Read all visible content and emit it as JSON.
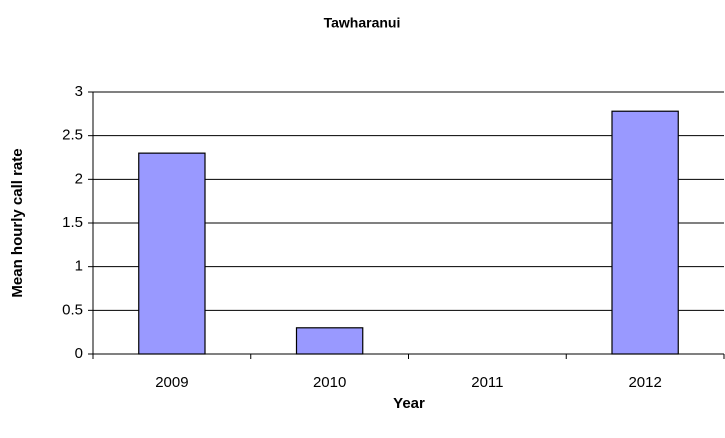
{
  "chart_data": {
    "type": "bar",
    "title": "Tawharanui",
    "x_label": "Year",
    "y_label": "Mean hourly call rate",
    "categories": [
      "2009",
      "2010",
      "2011",
      "2012"
    ],
    "values": [
      2.3,
      0.3,
      0,
      2.78
    ],
    "color": "#9999ff",
    "ylim": [
      0,
      3
    ],
    "yticks": [
      0,
      0.5,
      1,
      1.5,
      2,
      2.5,
      3
    ],
    "grid": true
  }
}
